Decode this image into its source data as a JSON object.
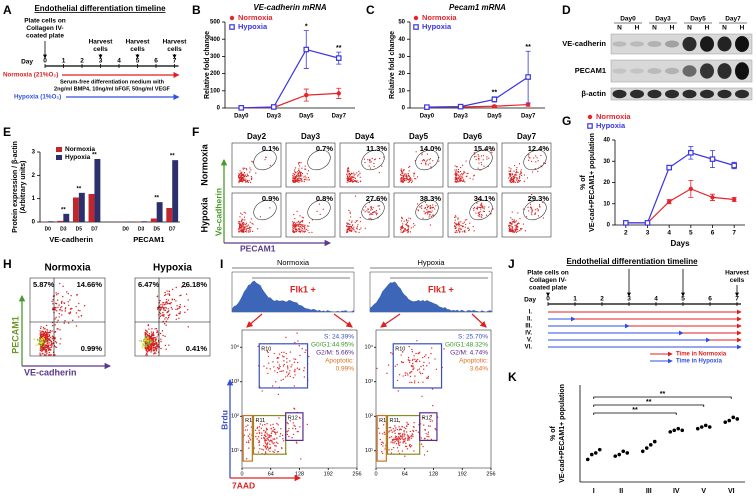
{
  "panel_labels": [
    "A",
    "B",
    "C",
    "D",
    "E",
    "F",
    "G",
    "H",
    "I",
    "J",
    "K"
  ],
  "timeline_a": {
    "title": "Endothelial differentiation timeline",
    "plate": [
      "Plate cells on",
      "Collagen IV-",
      "coated plate"
    ],
    "harvest": [
      "Harvest",
      "cells"
    ],
    "day_label": "Day",
    "days": [
      0,
      1,
      2,
      3,
      4,
      5,
      6,
      7
    ],
    "normoxia": "Normoxia (21%O₂)",
    "hypoxia": "Hypoxia (1%O₂)",
    "medium": [
      "Serum-free differentiation medium with",
      "2ng/ml BMP4, 10ng/ml bFGF, 50ng/ml VEGF"
    ]
  },
  "chart_data": [
    {
      "type": "line",
      "title": "VE-cadherin mRNA",
      "ylabel": "Relative fold change",
      "categories": [
        "Day0",
        "Day3",
        "Day5",
        "Day7"
      ],
      "ylim": [
        0,
        500
      ],
      "yticks": [
        0,
        100,
        200,
        300,
        400,
        500
      ],
      "series": [
        {
          "name": "Normoxia",
          "color": "#e8232a",
          "marker": "circle",
          "values": [
            1,
            3,
            75,
            85
          ],
          "errors": [
            0,
            1,
            35,
            30
          ]
        },
        {
          "name": "Hypoxia",
          "color": "#3a35e0",
          "marker": "square",
          "values": [
            1,
            6,
            340,
            290
          ],
          "errors": [
            0,
            2,
            110,
            35
          ]
        }
      ],
      "significance": [
        null,
        null,
        "*",
        "**"
      ]
    },
    {
      "type": "line",
      "title": "Pecam1 mRNA",
      "ylabel": "Relative fold change",
      "categories": [
        "Day0",
        "Day3",
        "Day5",
        "Day7"
      ],
      "ylim": [
        0,
        50
      ],
      "yticks": [
        0,
        10,
        20,
        30,
        40,
        50
      ],
      "series": [
        {
          "name": "Normoxia",
          "color": "#e8232a",
          "marker": "circle",
          "values": [
            0.5,
            0.6,
            1,
            2
          ],
          "errors": [
            0,
            0.2,
            0.5,
            1
          ]
        },
        {
          "name": "Hypoxia",
          "color": "#3a35e0",
          "marker": "square",
          "values": [
            0.5,
            0.8,
            5,
            18
          ],
          "errors": [
            0,
            0.2,
            1.5,
            15
          ]
        }
      ],
      "significance": [
        null,
        null,
        "**",
        "**"
      ]
    },
    {
      "type": "grouped_bar",
      "ylabel": [
        "Protein expression / β-actin",
        "(Arbitrary units)"
      ],
      "categories": [
        "D0",
        "D3",
        "D5",
        "D7",
        "D0",
        "D3",
        "D5",
        "D7"
      ],
      "groups": [
        "VE-cadherin",
        "PECAM1"
      ],
      "ylim": [
        0,
        3
      ],
      "yticks": [
        0,
        1,
        2,
        3
      ],
      "series": [
        {
          "name": "Normoxia",
          "color": "#c0272d",
          "values": [
            0.02,
            0.05,
            1.05,
            1.2,
            0.01,
            0.02,
            0.15,
            0.6
          ]
        },
        {
          "name": "Hypoxia",
          "color": "#2b2f6b",
          "values": [
            0.03,
            0.35,
            1.25,
            2.7,
            0.02,
            0.03,
            0.85,
            2.65
          ]
        }
      ],
      "significance": [
        null,
        "**",
        "**",
        "**",
        null,
        null,
        "**",
        "**"
      ]
    },
    {
      "type": "line",
      "xlabel": "Days",
      "ylabel": [
        "% of",
        "VE-cad+PECAM1+ population"
      ],
      "x": [
        2,
        3,
        4,
        5,
        6,
        7
      ],
      "xlim": [
        1.5,
        7.5
      ],
      "xticks": [
        2,
        3,
        4,
        5,
        6,
        7
      ],
      "ylim": [
        0,
        40
      ],
      "yticks": [
        0,
        10,
        20,
        30,
        40
      ],
      "series": [
        {
          "name": "Normoxia",
          "color": "#e8232a",
          "marker": "circle",
          "values": [
            1,
            1,
            11,
            17,
            13,
            12
          ],
          "errors": [
            0,
            0,
            1,
            4,
            1.5,
            1
          ]
        },
        {
          "name": "Hypoxia",
          "color": "#3a35e0",
          "marker": "square",
          "values": [
            1,
            1,
            27,
            34,
            31,
            28
          ],
          "errors": [
            0,
            0,
            1,
            3,
            4,
            1.5
          ]
        }
      ]
    },
    {
      "type": "strip",
      "ylabel": [
        "% of",
        "VE-cad+PECAM1+ population"
      ],
      "categories": [
        "I",
        "II",
        "III",
        "IV",
        "V",
        "VI"
      ],
      "ylim": [
        0,
        60
      ],
      "points": [
        [
          14,
          17,
          18,
          20
        ],
        [
          16,
          17,
          19,
          18
        ],
        [
          19,
          21,
          23,
          25
        ],
        [
          31,
          32,
          33,
          32
        ],
        [
          33,
          34,
          35,
          34
        ],
        [
          37,
          38,
          40,
          39
        ]
      ],
      "brackets": [
        {
          "from": "I",
          "to": "IV",
          "label": "**"
        },
        {
          "from": "I",
          "to": "V",
          "label": "**"
        },
        {
          "from": "I",
          "to": "VI",
          "label": "**"
        }
      ]
    }
  ],
  "blot": {
    "days": [
      "Day0",
      "Day3",
      "Day5",
      "Day7"
    ],
    "conditions": [
      "N",
      "H"
    ],
    "rows": [
      "VE-cadherin",
      "PECAM1",
      "β-actin"
    ]
  },
  "flow": {
    "days": [
      "Day2",
      "Day3",
      "Day4",
      "Day5",
      "Day6",
      "Day7"
    ],
    "conditions": [
      "Normoxia",
      "Hypoxia"
    ],
    "percentages": [
      [
        "0.1%",
        "0.7%",
        "11.3%",
        "14.0%",
        "15.4%",
        "12.4%"
      ],
      [
        "0.9%",
        "0.8%",
        "27.6%",
        "38.3%",
        "34.1%",
        "29.3%"
      ]
    ],
    "ylabel": "Ve-cadherin",
    "xlabel": "PECAM1"
  },
  "flow_h": {
    "conditions": [
      "Normoxia",
      "Hypoxia"
    ],
    "quadrants": [
      [
        "5.87%",
        "14.66%",
        "0.99%"
      ],
      [
        "6.47%",
        "26.18%",
        "0.41%"
      ]
    ],
    "ylabel": "PECAM1",
    "xlabel": "VE-cadherin"
  },
  "cell_cycle": {
    "conditions": [
      "Normoxia",
      "Hypoxia"
    ],
    "gate": "Flk1 +",
    "stats": [
      [
        "S: 24.39%",
        "G0/G1:44.95%",
        "G2/M: 5.66%",
        "Apoptotic:",
        "0.99%"
      ],
      [
        "S: 25.70%",
        "G0/G1:48.32%",
        "G2/M: 4.74%",
        "Apoptotic:",
        "3.64%"
      ]
    ],
    "regions": [
      "R10",
      "R11",
      "R12",
      "R1"
    ],
    "ylabel": "Brdu",
    "xlabel": "7AAD",
    "xticks": [
      0,
      64,
      128,
      192,
      256
    ],
    "yticks": [
      {
        "value": 10,
        "label": "10¹"
      },
      {
        "value": 100,
        "label": "10²"
      },
      {
        "value": 1000,
        "label": "10³"
      },
      {
        "value": 10000,
        "label": "10⁴"
      }
    ]
  },
  "timeline_j": {
    "title": "Endothelial differentiation timeline",
    "plate": [
      "Plate cells on",
      "Collagen IV-",
      "coated plate"
    ],
    "harvest": [
      "Harvest",
      "cells"
    ],
    "day_label": "Day",
    "days": [
      0,
      1,
      2,
      3,
      4,
      5,
      6,
      7
    ],
    "rows": [
      "I.",
      "II.",
      "III.",
      "IV.",
      "V.",
      "VI."
    ],
    "legend": [
      "Time in Normoxia",
      "Time in Hypoxia"
    ]
  }
}
